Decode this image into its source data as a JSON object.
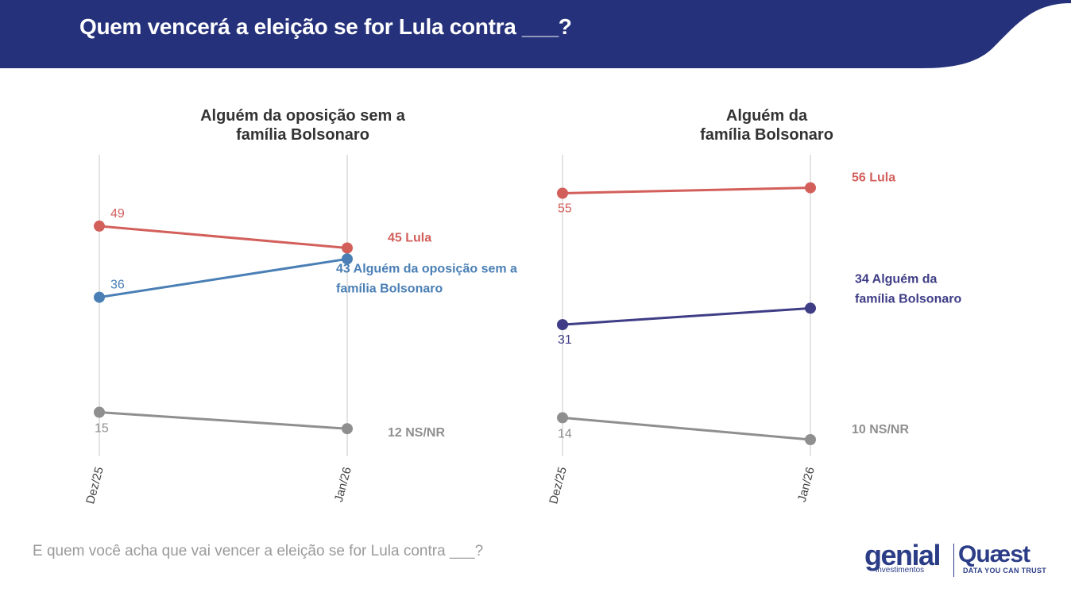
{
  "header": {
    "title": "Quem vencerá a eleição se for Lula contra ___?"
  },
  "footer": {
    "question": "E quem você acha que vai vencer a eleição se for Lula contra ___?"
  },
  "logos": {
    "genial": "genial",
    "genial_sub": "investimentos",
    "quaest": "Quæst",
    "quaest_sub": "DATA YOU CAN TRUST"
  },
  "colors": {
    "header": "#25317a",
    "lula": "#d35f5b",
    "opposition": "#4a7fb5",
    "bolsonaro_family": "#3e3d86",
    "nsnr": "#8f8f8f",
    "gridline": "#e3e3e3"
  },
  "chart_data": [
    {
      "type": "line",
      "title": "Alguém da oposição sem a família Bolsonaro",
      "title_lines": [
        "Alguém da oposição sem a",
        "família Bolsonaro"
      ],
      "x": [
        "Dez/25",
        "Jan/26"
      ],
      "ylim": [
        0,
        60
      ],
      "series": [
        {
          "key": "lula",
          "name": "Lula",
          "values": [
            49,
            45
          ],
          "start_label": "49",
          "end_label": "45 Lula"
        },
        {
          "key": "opposition",
          "name": "Alguém da oposição sem a família Bolsonaro",
          "values": [
            36,
            43
          ],
          "start_label": "36",
          "end_label_lines": [
            "43 Alguém da oposição sem a",
            "família Bolsonaro"
          ]
        },
        {
          "key": "nsnr",
          "name": "NS/NR",
          "values": [
            15,
            12
          ],
          "start_label": "15",
          "end_label": "12 NS/NR"
        }
      ]
    },
    {
      "type": "line",
      "title": "Alguém da família Bolsonaro",
      "title_lines": [
        "Alguém da",
        "família Bolsonaro"
      ],
      "x": [
        "Dez/25",
        "Jan/26"
      ],
      "ylim": [
        0,
        60
      ],
      "series": [
        {
          "key": "lula",
          "name": "Lula",
          "values": [
            55,
            56
          ],
          "start_label": "55",
          "end_label": "56 Lula"
        },
        {
          "key": "bolsonaro_family",
          "name": "Alguém da família Bolsonaro",
          "values": [
            31,
            34
          ],
          "start_label": "31",
          "end_label_lines": [
            "34 Alguém da",
            "família Bolsonaro"
          ]
        },
        {
          "key": "nsnr",
          "name": "NS/NR",
          "values": [
            14,
            10
          ],
          "start_label": "14",
          "end_label": "10 NS/NR"
        }
      ]
    }
  ]
}
